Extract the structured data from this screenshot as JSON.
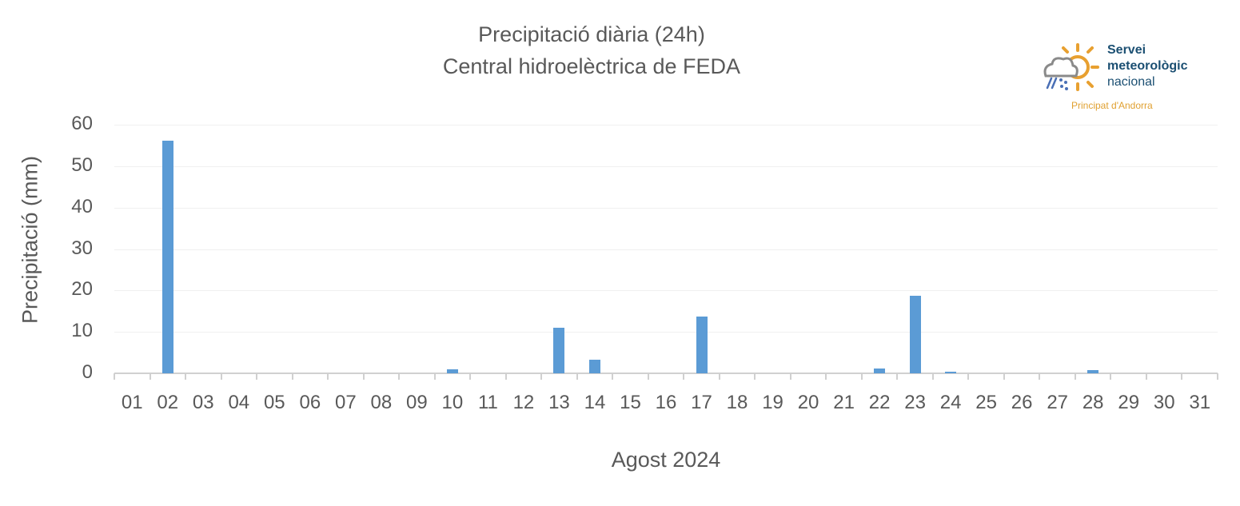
{
  "header": {
    "title_line1": "Precipitació diària (24h)",
    "title_line2": "Central hidroelèctrica de FEDA"
  },
  "logo": {
    "line1": "Servei",
    "line2": "meteorològic",
    "line3": "nacional",
    "subtitle": "Principat d'Andorra",
    "icon": "sun-cloud-rain-snow-icon"
  },
  "colors": {
    "bar": "#5b9bd5",
    "text": "#595959",
    "grid": "#f0f0f0",
    "axis": "#d0d0d0"
  },
  "chart_data": {
    "type": "bar",
    "title": "Precipitació diària (24h) — Central hidroelèctrica de FEDA",
    "xlabel": "Agost 2024",
    "ylabel": "Precipitació (mm)",
    "ylim": [
      0,
      60
    ],
    "yticks": [
      0,
      10,
      20,
      30,
      40,
      50,
      60
    ],
    "grid": true,
    "legend": null,
    "categories": [
      "01",
      "02",
      "03",
      "04",
      "05",
      "06",
      "07",
      "08",
      "09",
      "10",
      "11",
      "12",
      "13",
      "14",
      "15",
      "16",
      "17",
      "18",
      "19",
      "20",
      "21",
      "22",
      "23",
      "24",
      "25",
      "26",
      "27",
      "28",
      "29",
      "30",
      "31"
    ],
    "series": [
      {
        "name": "Precipitació (mm)",
        "values": [
          0,
          56.2,
          0,
          0,
          0,
          0,
          0,
          0,
          0,
          1.0,
          0,
          0,
          11.0,
          3.3,
          0,
          0,
          13.7,
          0,
          0,
          0,
          0,
          1.2,
          18.7,
          0.4,
          0,
          0,
          0,
          0.8,
          0,
          0,
          0
        ]
      }
    ]
  }
}
